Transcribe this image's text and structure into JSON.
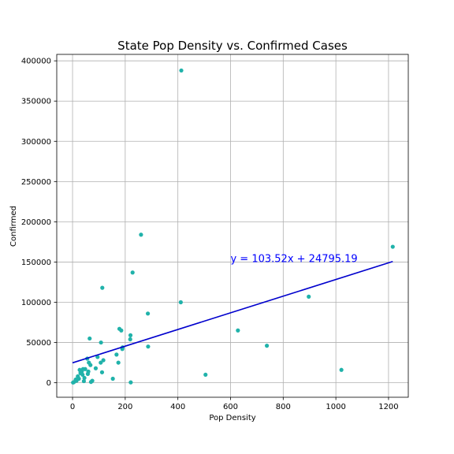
{
  "chart_data": {
    "type": "scatter",
    "title": "State Pop Density vs. Confirmed Cases",
    "xlabel": "Pop Density",
    "ylabel": "Confirmed",
    "xlim": [
      -60,
      1275
    ],
    "ylim": [
      -18000,
      408000
    ],
    "xticks": [
      0,
      200,
      400,
      600,
      800,
      1000,
      1200
    ],
    "yticks": [
      0,
      50000,
      100000,
      150000,
      200000,
      250000,
      300000,
      350000,
      400000
    ],
    "grid": true,
    "colors": {
      "points": "#20b2aa",
      "line": "#0000cd",
      "equation": "#0000ff",
      "grid": "#b0b0b0"
    },
    "points": [
      {
        "x": 2,
        "y": 300
      },
      {
        "x": 5,
        "y": 800
      },
      {
        "x": 12,
        "y": 4000
      },
      {
        "x": 15,
        "y": 2500
      },
      {
        "x": 20,
        "y": 8000
      },
      {
        "x": 24,
        "y": 5000
      },
      {
        "x": 27,
        "y": 16000
      },
      {
        "x": 30,
        "y": 12000
      },
      {
        "x": 35,
        "y": 14000
      },
      {
        "x": 38,
        "y": 10000
      },
      {
        "x": 40,
        "y": 17000
      },
      {
        "x": 43,
        "y": 2000
      },
      {
        "x": 45,
        "y": 6000
      },
      {
        "x": 48,
        "y": 17000
      },
      {
        "x": 56,
        "y": 30000
      },
      {
        "x": 58,
        "y": 11000
      },
      {
        "x": 60,
        "y": 14000
      },
      {
        "x": 62,
        "y": 25000
      },
      {
        "x": 65,
        "y": 55000
      },
      {
        "x": 68,
        "y": 22000
      },
      {
        "x": 70,
        "y": 1000
      },
      {
        "x": 75,
        "y": 2500
      },
      {
        "x": 88,
        "y": 18000
      },
      {
        "x": 95,
        "y": 32000
      },
      {
        "x": 107,
        "y": 25000
      },
      {
        "x": 108,
        "y": 50000
      },
      {
        "x": 112,
        "y": 13000
      },
      {
        "x": 113,
        "y": 118000
      },
      {
        "x": 117,
        "y": 28000
      },
      {
        "x": 153,
        "y": 5000
      },
      {
        "x": 167,
        "y": 35000
      },
      {
        "x": 174,
        "y": 25000
      },
      {
        "x": 178,
        "y": 67000
      },
      {
        "x": 185,
        "y": 65000
      },
      {
        "x": 189,
        "y": 42000
      },
      {
        "x": 190,
        "y": 44000
      },
      {
        "x": 219,
        "y": 54000
      },
      {
        "x": 220,
        "y": 59000
      },
      {
        "x": 221,
        "y": 500
      },
      {
        "x": 228,
        "y": 137000
      },
      {
        "x": 260,
        "y": 184000
      },
      {
        "x": 286,
        "y": 86000
      },
      {
        "x": 287,
        "y": 45000
      },
      {
        "x": 411,
        "y": 100000
      },
      {
        "x": 413,
        "y": 388000
      },
      {
        "x": 505,
        "y": 10000
      },
      {
        "x": 628,
        "y": 65000
      },
      {
        "x": 738,
        "y": 46000
      },
      {
        "x": 897,
        "y": 107000
      },
      {
        "x": 1021,
        "y": 16000
      },
      {
        "x": 1216,
        "y": 169000
      }
    ],
    "regression": {
      "slope": 103.52,
      "intercept": 24795.19,
      "x_range": [
        0,
        1216
      ],
      "equation": "y = 103.52x + 24795.19",
      "equation_anchor": {
        "x": 600,
        "y": 150000
      }
    }
  }
}
